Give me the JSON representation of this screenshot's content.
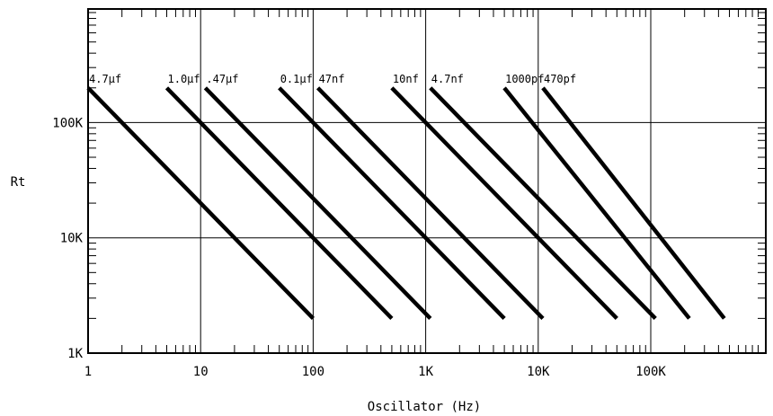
{
  "chart_data": {
    "type": "line",
    "title": "",
    "xlabel": "Oscillator (Hz)",
    "ylabel": "Rt",
    "x_scale": "log",
    "y_scale": "log",
    "xlim": [
      1,
      1000000
    ],
    "ylim": [
      1000,
      1000000
    ],
    "grid": true,
    "x_tick_labels": [
      {
        "value": 1,
        "label": "1"
      },
      {
        "value": 10,
        "label": "10"
      },
      {
        "value": 100,
        "label": "100"
      },
      {
        "value": 1000,
        "label": "1K"
      },
      {
        "value": 10000,
        "label": "10K"
      },
      {
        "value": 100000,
        "label": "100K"
      }
    ],
    "y_tick_labels": [
      {
        "value": 1000,
        "label": "1K"
      },
      {
        "value": 10000,
        "label": "10K"
      },
      {
        "value": 100000,
        "label": "100K"
      }
    ],
    "series": [
      {
        "name": "4.7µf",
        "x": [
          1,
          100
        ],
        "y": [
          200000,
          2000
        ]
      },
      {
        "name": "1.0µf",
        "x": [
          5,
          500
        ],
        "y": [
          200000,
          2000
        ]
      },
      {
        "name": ".47µf",
        "x": [
          11,
          1100
        ],
        "y": [
          200000,
          2000
        ]
      },
      {
        "name": "0.1µf",
        "x": [
          50,
          5000
        ],
        "y": [
          200000,
          2000
        ]
      },
      {
        "name": "47nf",
        "x": [
          110,
          11000
        ],
        "y": [
          200000,
          2000
        ]
      },
      {
        "name": "10nf",
        "x": [
          500,
          50000
        ],
        "y": [
          200000,
          2000
        ]
      },
      {
        "name": "4.7nf",
        "x": [
          1100,
          110000
        ],
        "y": [
          200000,
          2000
        ]
      },
      {
        "name": "1000pf",
        "x": [
          5000,
          220000
        ],
        "y": [
          200000,
          2000
        ]
      },
      {
        "name": "470pf",
        "x": [
          11000,
          450000
        ],
        "y": [
          200000,
          2000
        ]
      }
    ]
  }
}
